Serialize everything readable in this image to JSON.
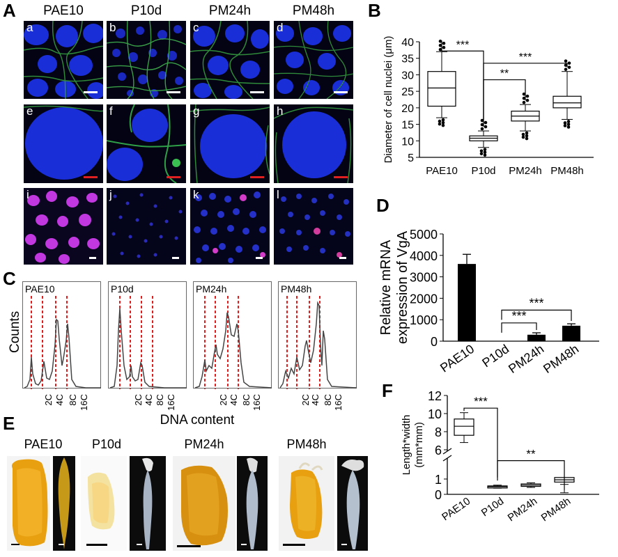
{
  "panels": {
    "A": "A",
    "B": "B",
    "C": "C",
    "D": "D",
    "E": "E",
    "F": "F"
  },
  "stages": [
    "PAE10",
    "P10d",
    "PM24h",
    "PM48h"
  ],
  "tile_letters": [
    "a",
    "b",
    "c",
    "d",
    "e",
    "f",
    "g",
    "h",
    "i",
    "j",
    "k",
    "l"
  ],
  "panel_C": {
    "ylabel": "Counts",
    "xlabel": "DNA content",
    "ticks": [
      "2C",
      "4C",
      "8C",
      "16C"
    ]
  },
  "chart_B": {
    "type": "box",
    "ylabel": "Diameter of cell nuclei (μm)",
    "yticks": [
      5,
      10,
      15,
      20,
      25,
      30,
      35,
      40
    ],
    "ylim": [
      5,
      40
    ],
    "categories": [
      "PAE10",
      "P10d",
      "PM24h",
      "PM48h"
    ],
    "boxes": [
      {
        "min": 17,
        "q1": 20.5,
        "median": 26,
        "q3": 31,
        "max": 37
      },
      {
        "min": 8,
        "q1": 10,
        "median": 10.8,
        "q3": 11.5,
        "max": 13
      },
      {
        "min": 13,
        "q1": 16,
        "median": 17.5,
        "q3": 19,
        "max": 21
      },
      {
        "min": 16.5,
        "q1": 20,
        "median": 21.5,
        "q3": 23.5,
        "max": 31
      }
    ],
    "significance": [
      {
        "between": [
          "PAE10",
          "P10d"
        ],
        "label": "***"
      },
      {
        "between": [
          "P10d",
          "PM24h"
        ],
        "label": "**"
      },
      {
        "between": [
          "P10d",
          "PM48h"
        ],
        "label": "***"
      }
    ]
  },
  "chart_D": {
    "type": "bar",
    "ylabel": "Relative mRNA expression of VgA",
    "yticks": [
      0,
      1000,
      2000,
      3000,
      4000,
      5000
    ],
    "ylim": [
      0,
      5000
    ],
    "categories": [
      "PAE10",
      "P10d",
      "PM24h",
      "PM48h"
    ],
    "values": [
      3600,
      10,
      300,
      720
    ],
    "errors": [
      450,
      0,
      90,
      90
    ],
    "significance": [
      {
        "between": [
          "P10d",
          "PM24h"
        ],
        "label": "***"
      },
      {
        "between": [
          "P10d",
          "PM48h"
        ],
        "label": "***"
      }
    ]
  },
  "chart_F": {
    "type": "box",
    "ylabel": "Length*width (mm*mm)",
    "yticks": [
      0,
      1,
      6,
      8,
      10,
      12
    ],
    "categories": [
      "PAE10",
      "P10d",
      "PM24h",
      "PM48h"
    ],
    "boxes": [
      {
        "min": 6.8,
        "q1": 7.6,
        "median": 8.6,
        "q3": 9.4,
        "max": 10.1
      },
      {
        "min": 0.4,
        "q1": 0.45,
        "median": 0.5,
        "q3": 0.55,
        "max": 0.6
      },
      {
        "min": 0.45,
        "q1": 0.52,
        "median": 0.6,
        "q3": 0.68,
        "max": 0.75
      },
      {
        "min": 0.65,
        "q1": 0.8,
        "median": 0.95,
        "q3": 1.1,
        "max": 1.25
      }
    ],
    "significance": [
      {
        "between": [
          "PAE10",
          "P10d"
        ],
        "label": "***"
      },
      {
        "between": [
          "P10d",
          "PM48h"
        ],
        "label": "**"
      }
    ]
  }
}
